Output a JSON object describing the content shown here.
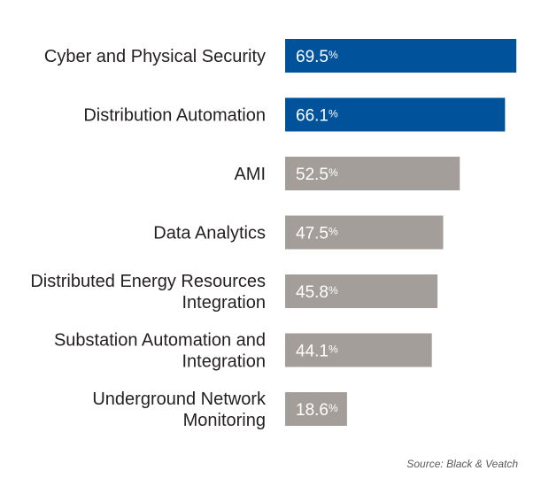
{
  "chart_data": {
    "type": "bar",
    "orientation": "horizontal",
    "categories": [
      [
        "Cyber and Physical Security"
      ],
      [
        "Distribution Automation"
      ],
      [
        "AMI"
      ],
      [
        "Data Analytics"
      ],
      [
        "Distributed Energy Resources",
        "Integration"
      ],
      [
        "Substation Automation and",
        "Integration"
      ],
      [
        "Underground Network",
        "Monitoring"
      ]
    ],
    "values": [
      69.5,
      66.1,
      52.5,
      47.5,
      45.8,
      44.1,
      18.6
    ],
    "value_labels": [
      "69.5",
      "66.1",
      "52.5",
      "47.5",
      "45.8",
      "44.1",
      "18.6"
    ],
    "value_suffix": "%",
    "bar_colors": [
      "#00539b",
      "#00539b",
      "#a39e9a",
      "#a39e9a",
      "#a39e9a",
      "#a39e9a",
      "#a39e9a"
    ],
    "xlim": [
      0,
      70
    ],
    "grid": false,
    "legend": "none",
    "source": "Source: Black & Veatch"
  }
}
